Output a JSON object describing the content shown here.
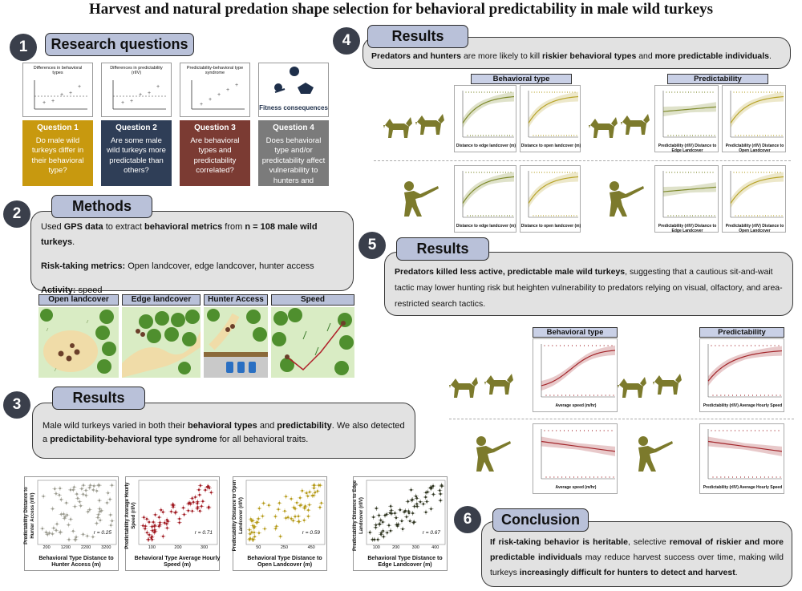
{
  "title": "Harvest and natural predation shape selection for behavioral predictability in male wild turkeys",
  "s1": {
    "num": "1",
    "label": "Research questions",
    "questions": [
      {
        "title": "Question 1",
        "text": "Do male wild turkeys differ in their behavioral type?",
        "color": "#c8990f",
        "plot_title": "Differences in behavioral types"
      },
      {
        "title": "Question 2",
        "text": "Are some male wild turkeys more predictable than others?",
        "color": "#2f3e57",
        "plot_title": "Differences in predictability (rIIV)"
      },
      {
        "title": "Question 3",
        "text": "Are behavioral types and predictability correlated?",
        "color": "#7b3b33",
        "plot_title": "Predictability-behavioral type syndrome"
      },
      {
        "title": "Question 4",
        "text": "Does behavioral type and/or predictability affect vulnerability to hunters and predators?",
        "color": "#7b7b7b",
        "plot_title": "Fitness consequences"
      }
    ]
  },
  "s2": {
    "num": "2",
    "label": "Methods",
    "l1a": "Used ",
    "l1b": "GPS data",
    "l1c": " to extract ",
    "l1d": "behavioral metrics",
    "l1e": " from ",
    "l1f": "n = 108 male wild turkeys",
    "l2a": "Risk-taking metrics:",
    "l2b": " Open landcover, edge landcover, hunter access",
    "l3a": "Activity:",
    "l3b": " speed",
    "labels": [
      "Open landcover",
      "Edge landcover",
      "Hunter Access",
      "Speed"
    ]
  },
  "s3": {
    "num": "3",
    "label": "Results",
    "t1": "Male wild turkeys varied in both their ",
    "t2": "behavioral types",
    "t3": " and ",
    "t4": "predictability",
    "t5": ". We also detected a ",
    "t6": "predictability-behavioral type syndrome",
    "t7": " for all behavioral traits.",
    "plots": [
      {
        "ylabel": "Predictability Distance to Hunter Access (rIIV)",
        "xlabel": "Behavioral Type Distance to Hunter Access (m)",
        "r": "r = 0.25",
        "color": "#9a9a8e",
        "ticks": [
          "200",
          "1200",
          "2200",
          "3200"
        ]
      },
      {
        "ylabel": "Predictability Average Hourly Speed (rIIV)",
        "xlabel": "Behavioral Type Average Hourly Speed (m)",
        "r": "r = 0.71",
        "color": "#a11a22",
        "ticks": [
          "100",
          "200",
          "300"
        ]
      },
      {
        "ylabel": "Predictability Distance to Open Landcover (rIIV)",
        "xlabel": "Behavioral Type Distance to Open Landcover (m)",
        "r": "r = 0.59",
        "color": "#b59a18",
        "ticks": [
          "50",
          "250",
          "450"
        ]
      },
      {
        "ylabel": "Predictability Distance to Edge Landcover (rIIV)",
        "xlabel": "Behavioral Type Distance to Edge Landcover (m)",
        "r": "r = 0.67",
        "color": "#2f3520",
        "ticks": [
          "100",
          "200",
          "300",
          "400"
        ]
      }
    ]
  },
  "s4": {
    "num": "4",
    "label": "Results",
    "t1": "Predators and hunters",
    "t2": " are more likely to kill ",
    "t3": "riskier behavioral types",
    "t4": " and ",
    "t5": "more predictable individuals",
    "hdr_bt": "Behavioral type",
    "hdr_pr": "Predictability",
    "xl": [
      "Distance to edge landcover (m)",
      "Distance to open landcover (m)",
      "Predictability (rIIV) Distance to Edge Landcover",
      "Predictability (rIIV) Distance to Open Landcover"
    ]
  },
  "s5": {
    "num": "5",
    "label": "Results",
    "t1": "Predators killed less active, predictable male wild turkeys",
    "t2": ", suggesting that a cautious sit-and-wait tactic may lower hunting risk but heighten vulnerability to predators relying on visual, olfactory, and area-restricted search tactics.",
    "hdr_bt": "Behavioral type",
    "hdr_pr": "Predictability",
    "xl_bt": "Average speed (m/hr)",
    "xl_pr": "Predictability (rIIV) Average Hourly Speed"
  },
  "s6": {
    "num": "6",
    "label": "Conclusion",
    "t1": "If risk-taking behavior is heritable",
    "t2": ", selective ",
    "t3": "removal of riskier and more predictable individuals",
    "t4": " may reduce harvest success over time, making wild turkeys ",
    "t5": "increasingly difficult for hunters to detect and harvest",
    "t6": "."
  }
}
